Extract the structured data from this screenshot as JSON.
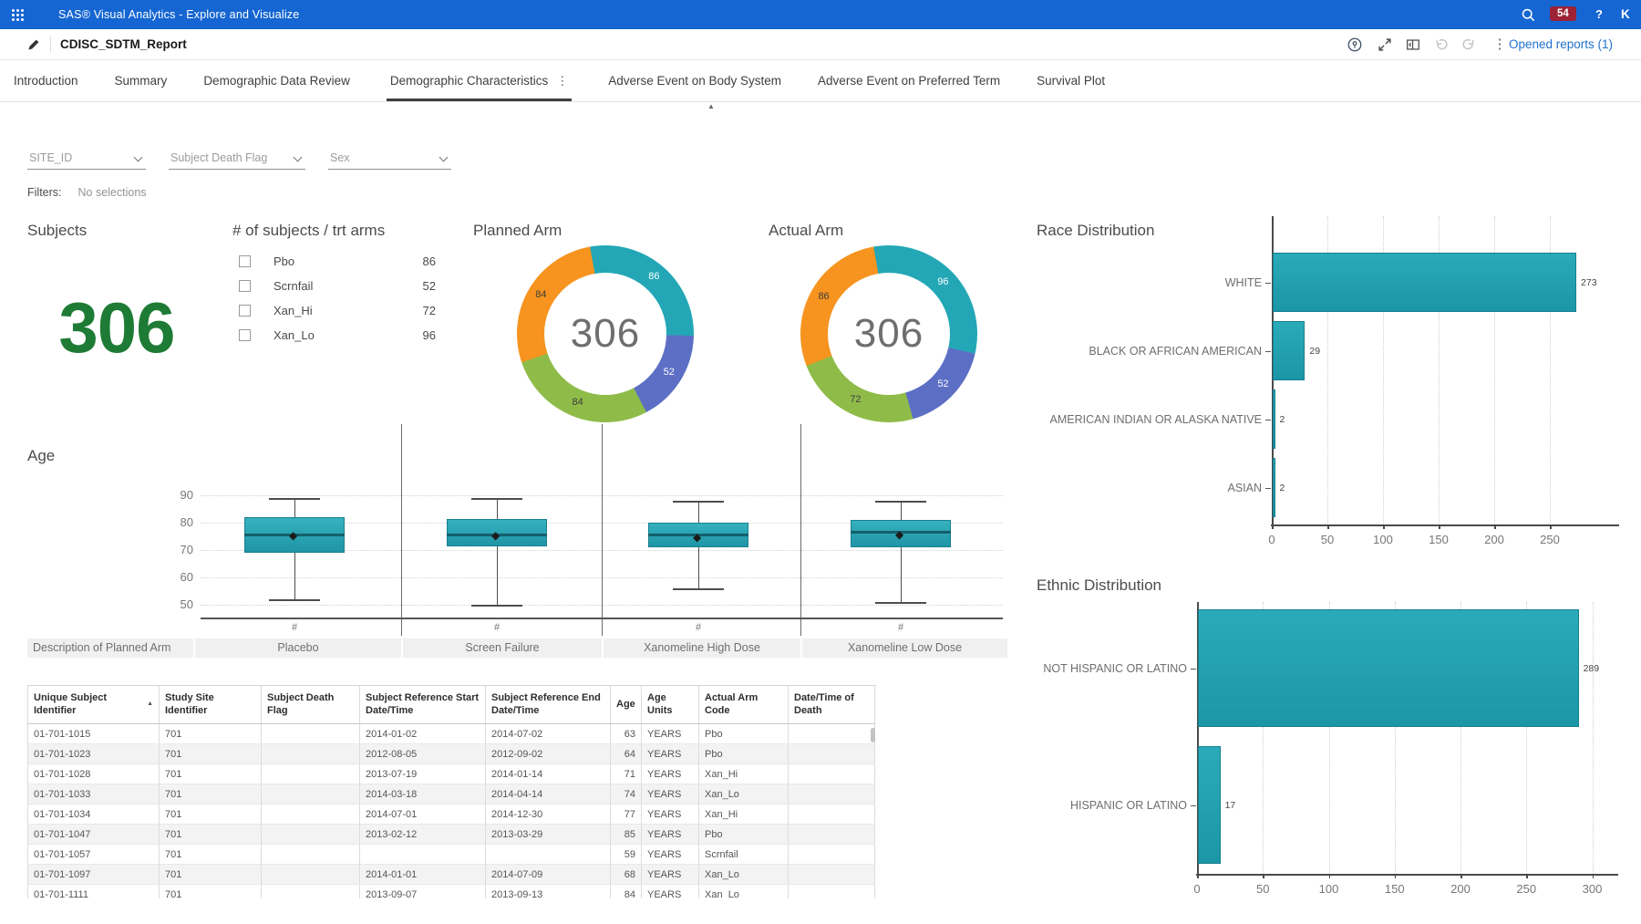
{
  "app_bar": {
    "title": "SAS® Visual Analytics - Explore and Visualize",
    "badge": "54",
    "help": "?",
    "avatar": "K"
  },
  "report_bar": {
    "title": "CDISC_SDTM_Report",
    "opened_reports": "Opened reports (1)"
  },
  "tabs": [
    {
      "label": "Introduction",
      "active": false
    },
    {
      "label": "Summary",
      "active": false
    },
    {
      "label": "Demographic Data Review",
      "active": false
    },
    {
      "label": "Demographic Characteristics",
      "active": true
    },
    {
      "label": "Adverse Event on Body System",
      "active": false
    },
    {
      "label": "Adverse Event on Preferred Term",
      "active": false
    },
    {
      "label": "Survival Plot",
      "active": false
    }
  ],
  "filters": {
    "dropdowns": [
      {
        "placeholder": "SITE_ID"
      },
      {
        "placeholder": "Subject Death Flag"
      },
      {
        "placeholder": "Sex"
      }
    ],
    "label": "Filters:",
    "status": "No selections"
  },
  "kpi": {
    "title": "Subjects",
    "value": "306",
    "color": "#1e7b35"
  },
  "trt_arms": {
    "title": "# of subjects / trt arms",
    "items": [
      {
        "label": "Pbo",
        "value": "86"
      },
      {
        "label": "Scrnfail",
        "value": "52"
      },
      {
        "label": "Xan_Hi",
        "value": "72"
      },
      {
        "label": "Xan_Lo",
        "value": "96"
      }
    ]
  },
  "chart_data": [
    {
      "type": "pie",
      "subtype": "donut",
      "title": "Planned Arm",
      "center_label": "306",
      "slices": [
        {
          "value": 86,
          "color": "#23a7b6",
          "text_color": "#ffffff"
        },
        {
          "value": 52,
          "color": "#5c6fc5",
          "text_color": "#ffffff"
        },
        {
          "value": 84,
          "color": "#8fbc49",
          "text_color": "#3d3d3d"
        },
        {
          "value": 84,
          "color": "#f6941f",
          "text_color": "#3d3d3d"
        }
      ]
    },
    {
      "type": "pie",
      "subtype": "donut",
      "title": "Actual Arm",
      "center_label": "306",
      "slices": [
        {
          "value": 96,
          "color": "#23a7b6",
          "text_color": "#ffffff"
        },
        {
          "value": 52,
          "color": "#5c6fc5",
          "text_color": "#ffffff"
        },
        {
          "value": 72,
          "color": "#8fbc49",
          "text_color": "#3d3d3d"
        },
        {
          "value": 86,
          "color": "#f6941f",
          "text_color": "#3d3d3d"
        }
      ]
    },
    {
      "type": "bar",
      "orientation": "horizontal",
      "title": "Race Distribution",
      "categories": [
        "WHITE",
        "BLACK OR AFRICAN AMERICAN",
        "AMERICAN INDIAN OR ALASKA NATIVE",
        "ASIAN"
      ],
      "values": [
        273,
        29,
        2,
        2
      ],
      "xticks": [
        0,
        50,
        100,
        150,
        200,
        250
      ],
      "xlim": [
        0,
        295
      ],
      "grid": "dotted-vertical",
      "legend": "none",
      "bar_color": "#1fa0b0"
    },
    {
      "type": "bar",
      "orientation": "horizontal",
      "title": "Ethnic Distribution",
      "categories": [
        "NOT HISPANIC OR LATINO",
        "HISPANIC OR LATINO"
      ],
      "values": [
        289,
        17
      ],
      "xticks": [
        0,
        50,
        100,
        150,
        200,
        250,
        300
      ],
      "xlim": [
        0,
        315
      ],
      "grid": "dotted-vertical",
      "legend": "none",
      "bar_color": "#1fa0b0"
    },
    {
      "type": "boxplot",
      "title": "Age",
      "yticks": [
        90,
        80,
        70,
        60,
        50
      ],
      "ylim": [
        46,
        94
      ],
      "x_tick_label": "#",
      "row_header": "Description of Planned Arm",
      "categories": [
        "Placebo",
        "Screen Failure",
        "Xanomeline High Dose",
        "Xanomeline Low Dose"
      ],
      "series": [
        {
          "name": "Placebo",
          "low": 52,
          "q1": 69,
          "median": 76,
          "mean": 75,
          "q3": 82,
          "high": 89
        },
        {
          "name": "Screen Failure",
          "low": 50,
          "q1": 71.5,
          "median": 76,
          "mean": 75,
          "q3": 81.5,
          "high": 89
        },
        {
          "name": "Xanomeline High Dose",
          "low": 56,
          "q1": 71,
          "median": 76,
          "mean": 74.5,
          "q3": 80,
          "high": 88
        },
        {
          "name": "Xanomeline Low Dose",
          "low": 51,
          "q1": 71,
          "median": 77,
          "mean": 75.5,
          "q3": 81,
          "high": 88
        }
      ]
    }
  ],
  "table": {
    "columns": [
      "Unique Subject Identifier",
      "Study Site Identifier",
      "Subject Death Flag",
      "Subject Reference Start Date/Time",
      "Subject Reference End Date/Time",
      "Age",
      "Age Units",
      "Actual Arm Code",
      "Date/Time of Death"
    ],
    "sort_column": 0,
    "rows": [
      [
        "01-701-1015",
        "701",
        "",
        "2014-01-02",
        "2014-07-02",
        "63",
        "YEARS",
        "Pbo",
        ""
      ],
      [
        "01-701-1023",
        "701",
        "",
        "2012-08-05",
        "2012-09-02",
        "64",
        "YEARS",
        "Pbo",
        ""
      ],
      [
        "01-701-1028",
        "701",
        "",
        "2013-07-19",
        "2014-01-14",
        "71",
        "YEARS",
        "Xan_Hi",
        ""
      ],
      [
        "01-701-1033",
        "701",
        "",
        "2014-03-18",
        "2014-04-14",
        "74",
        "YEARS",
        "Xan_Lo",
        ""
      ],
      [
        "01-701-1034",
        "701",
        "",
        "2014-07-01",
        "2014-12-30",
        "77",
        "YEARS",
        "Xan_Hi",
        ""
      ],
      [
        "01-701-1047",
        "701",
        "",
        "2013-02-12",
        "2013-03-29",
        "85",
        "YEARS",
        "Pbo",
        ""
      ],
      [
        "01-701-1057",
        "701",
        "",
        "",
        "",
        "59",
        "YEARS",
        "Scrnfail",
        ""
      ],
      [
        "01-701-1097",
        "701",
        "",
        "2014-01-01",
        "2014-07-09",
        "68",
        "YEARS",
        "Xan_Lo",
        ""
      ],
      [
        "01-701-1111",
        "701",
        "",
        "2013-09-07",
        "2013-09-13",
        "84",
        "YEARS",
        "Xan_Lo",
        ""
      ]
    ]
  }
}
